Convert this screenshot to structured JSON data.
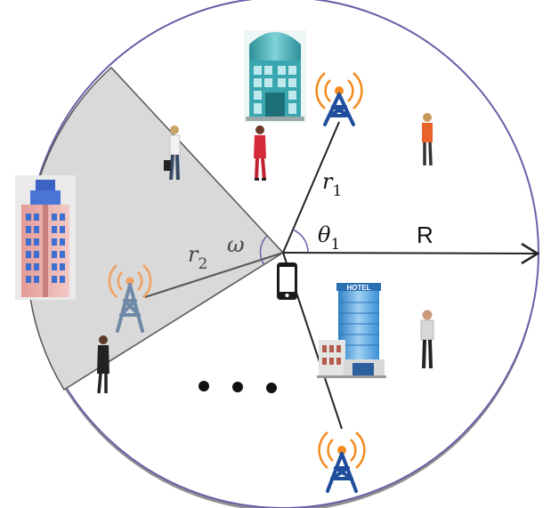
{
  "diagram": {
    "labels": {
      "r1_var": "r",
      "r1_sub": "1",
      "theta_var": "θ",
      "theta_sub": "1",
      "radius": "R",
      "r2_var": "r",
      "r2_sub": "2",
      "omega": "ω",
      "hotel_sign": "HOTEL"
    },
    "colors": {
      "circle_stroke": "#6a5fa8",
      "sector_fill": "#d9d9d9",
      "line": "#333333",
      "tower_blue": "#1f4e9c",
      "tower_gray": "#6f8aa6",
      "tower_waves": "#f28a1e",
      "building_teal": "#3aa7b0",
      "building_pink": "#e8a9a6",
      "hotel_blue": "#4aa3e0"
    },
    "icons": [
      "cell-tower-icon",
      "office-building-icon",
      "hotel-building-icon",
      "tower-building-icon",
      "smartphone-icon",
      "pedestrian-icon"
    ]
  }
}
